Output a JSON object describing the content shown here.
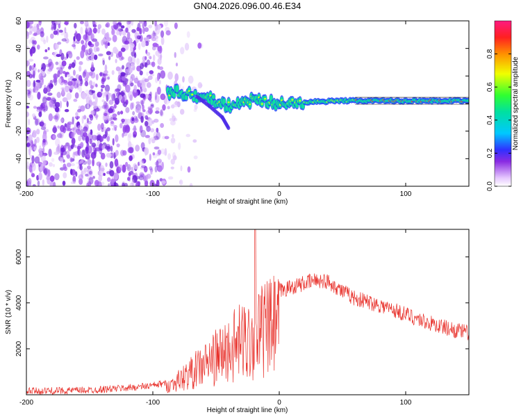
{
  "title": "GN04.2026.096.00.46.E34",
  "colors": {
    "snr_line": "#e8302a",
    "band": "#10e0a0",
    "axis": "#000000"
  },
  "chart_data": [
    {
      "type": "heatmap",
      "name": "spectrogram",
      "title": "GN04.2026.096.00.46.E34",
      "xlabel": "Height of straight line (km)",
      "ylabel": "Frequency (Hz)",
      "xlim": [
        -200,
        150
      ],
      "ylim": [
        -60,
        60
      ],
      "xticks": [
        -200,
        -100,
        0,
        100
      ],
      "yticks": [
        60,
        40,
        20,
        0,
        -20,
        -40,
        -60
      ],
      "noise_region_x": [
        -200,
        -85
      ],
      "signal_band": [
        {
          "x": -88,
          "y": 8
        },
        {
          "x": -80,
          "y": 8
        },
        {
          "x": -70,
          "y": 6
        },
        {
          "x": -60,
          "y": 4
        },
        {
          "x": -50,
          "y": 2
        },
        {
          "x": -40,
          "y": -2
        },
        {
          "x": -30,
          "y": 0
        },
        {
          "x": -20,
          "y": 3
        },
        {
          "x": -10,
          "y": 1
        },
        {
          "x": 0,
          "y": 0
        },
        {
          "x": 20,
          "y": 1
        },
        {
          "x": 50,
          "y": 2
        },
        {
          "x": 80,
          "y": 2
        },
        {
          "x": 100,
          "y": 2
        },
        {
          "x": 150,
          "y": 2
        }
      ],
      "branch": [
        {
          "x": -65,
          "y": 5
        },
        {
          "x": -55,
          "y": -2
        },
        {
          "x": -45,
          "y": -10
        },
        {
          "x": -40,
          "y": -18
        }
      ]
    },
    {
      "type": "colorbar",
      "name": "colorbar",
      "label": "Normalized spectral amplitude",
      "range": [
        0,
        1
      ],
      "ticks": [
        0.0,
        0.2,
        0.4,
        0.6,
        0.8
      ],
      "tick_labels": [
        "0.0",
        "0.2",
        "0.4",
        "0.6",
        "0.8"
      ]
    },
    {
      "type": "line",
      "name": "snr",
      "xlabel": "Height of straight line (km)",
      "ylabel": "SNR (10 * v/v)",
      "xlim": [
        -200,
        150
      ],
      "ylim": [
        0,
        7200
      ],
      "xticks": [
        -200,
        -100,
        0,
        100
      ],
      "yticks": [
        2000,
        4000,
        6000
      ],
      "envelope": [
        {
          "x": -200,
          "y": 150
        },
        {
          "x": -150,
          "y": 200
        },
        {
          "x": -120,
          "y": 300
        },
        {
          "x": -100,
          "y": 400
        },
        {
          "x": -90,
          "y": 500
        },
        {
          "x": -80,
          "y": 900
        },
        {
          "x": -70,
          "y": 1400
        },
        {
          "x": -60,
          "y": 1900
        },
        {
          "x": -50,
          "y": 2400
        },
        {
          "x": -40,
          "y": 2900
        },
        {
          "x": -30,
          "y": 3400
        },
        {
          "x": -20,
          "y": 3900
        },
        {
          "x": -10,
          "y": 4200
        },
        {
          "x": 0,
          "y": 4500
        },
        {
          "x": 10,
          "y": 4700
        },
        {
          "x": 20,
          "y": 4850
        },
        {
          "x": 30,
          "y": 5000
        },
        {
          "x": 40,
          "y": 4900
        },
        {
          "x": 50,
          "y": 4500
        },
        {
          "x": 60,
          "y": 4200
        },
        {
          "x": 70,
          "y": 4050
        },
        {
          "x": 80,
          "y": 3900
        },
        {
          "x": 90,
          "y": 3700
        },
        {
          "x": 100,
          "y": 3500
        },
        {
          "x": 110,
          "y": 3300
        },
        {
          "x": 120,
          "y": 3100
        },
        {
          "x": 130,
          "y": 2950
        },
        {
          "x": 140,
          "y": 2800
        },
        {
          "x": 150,
          "y": 2700
        }
      ],
      "peak": {
        "x": -19,
        "y": 7200
      }
    }
  ]
}
